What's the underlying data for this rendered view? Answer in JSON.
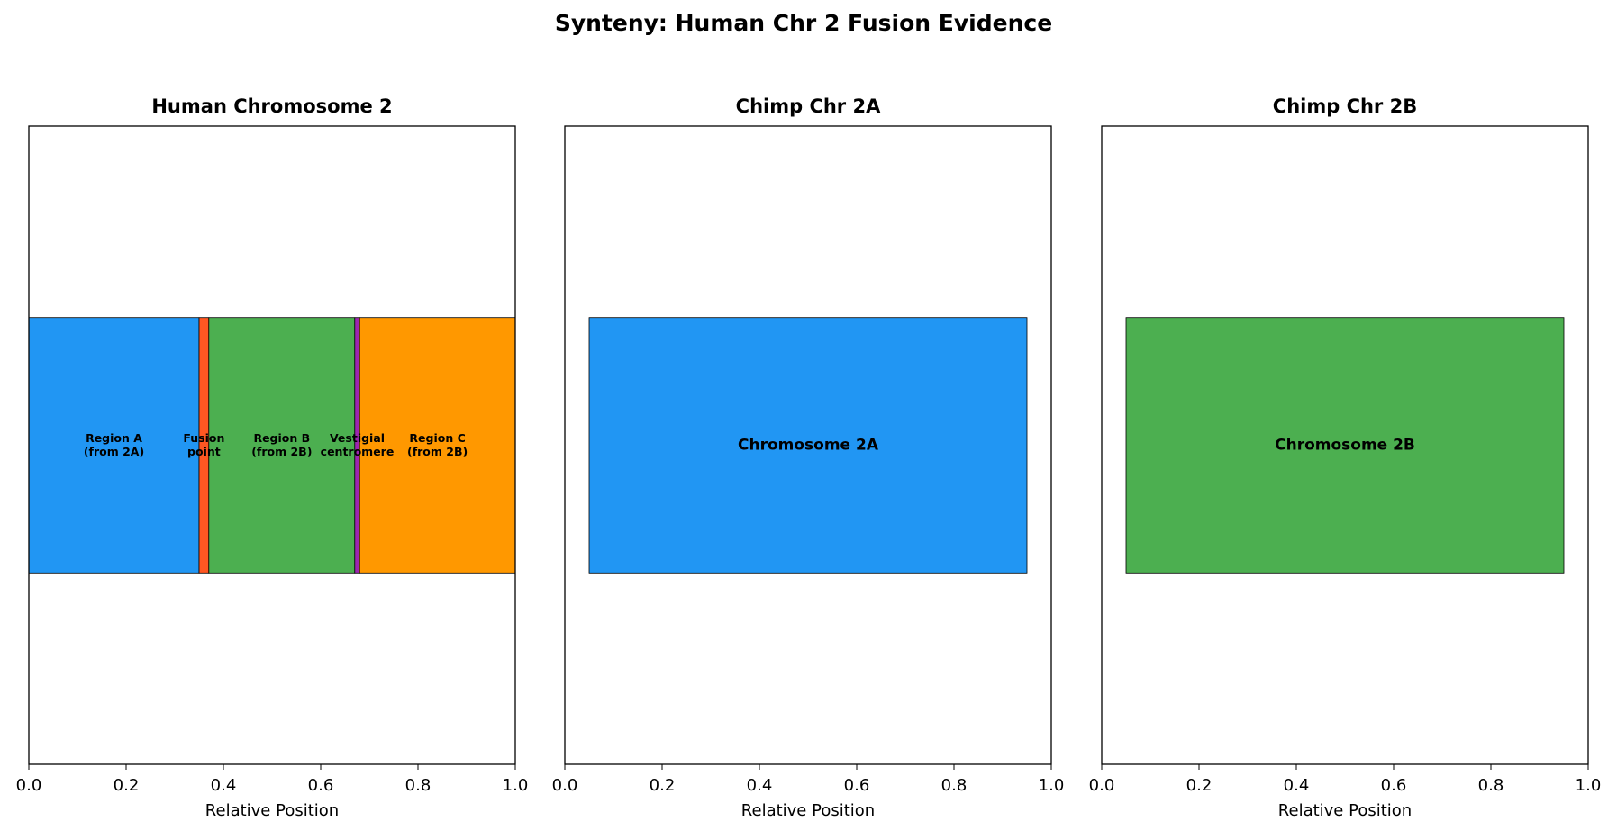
{
  "title": "Synteny: Human Chr 2 Fusion Evidence",
  "chart_data": [
    {
      "type": "broken_barh",
      "title": "Human Chromosome 2",
      "xlabel": "Relative Position",
      "xlim": [
        0.0,
        1.0
      ],
      "xticks": [
        {
          "value": 0,
          "label": "0.0"
        },
        {
          "value": 0.2,
          "label": "0.2"
        },
        {
          "value": 0.4,
          "label": "0.4"
        },
        {
          "value": 0.6,
          "label": "0.6"
        },
        {
          "value": 0.8,
          "label": "0.8"
        },
        {
          "value": 1,
          "label": "1.0"
        }
      ],
      "segments": [
        {
          "label": [
            "Region A",
            "(from 2A)"
          ],
          "start": 0,
          "end": 0.35,
          "color": "#2196f3"
        },
        {
          "label": [
            "Fusion",
            "point"
          ],
          "start": 0.35,
          "end": 0.37,
          "color": "#ff5722"
        },
        {
          "label": [
            "Region B",
            "(from 2B)"
          ],
          "start": 0.37,
          "end": 0.67,
          "color": "#4caf50"
        },
        {
          "label": [
            "Vestigial",
            "centromere"
          ],
          "start": 0.67,
          "end": 0.68,
          "color": "#9c27b0"
        },
        {
          "label": [
            "Region C",
            "(from 2B)"
          ],
          "start": 0.68,
          "end": 1.0,
          "color": "#ff9800"
        }
      ]
    },
    {
      "type": "broken_barh",
      "title": "Chimp Chr 2A",
      "xlabel": "Relative Position",
      "xlim": [
        0.0,
        1.0
      ],
      "xticks": [
        {
          "value": 0,
          "label": "0.0"
        },
        {
          "value": 0.2,
          "label": "0.2"
        },
        {
          "value": 0.4,
          "label": "0.4"
        },
        {
          "value": 0.6,
          "label": "0.6"
        },
        {
          "value": 0.8,
          "label": "0.8"
        },
        {
          "value": 1,
          "label": "1.0"
        }
      ],
      "segments": [
        {
          "label": [
            "Chromosome 2A"
          ],
          "start": 0.05,
          "end": 0.95,
          "color": "#2196f3"
        }
      ]
    },
    {
      "type": "broken_barh",
      "title": "Chimp Chr 2B",
      "xlabel": "Relative Position",
      "xlim": [
        0.0,
        1.0
      ],
      "xticks": [
        {
          "value": 0,
          "label": "0.0"
        },
        {
          "value": 0.2,
          "label": "0.2"
        },
        {
          "value": 0.4,
          "label": "0.4"
        },
        {
          "value": 0.6,
          "label": "0.6"
        },
        {
          "value": 0.8,
          "label": "0.8"
        },
        {
          "value": 1,
          "label": "1.0"
        }
      ],
      "segments": [
        {
          "label": [
            "Chromosome 2B"
          ],
          "start": 0.05,
          "end": 0.95,
          "color": "#4caf50"
        }
      ]
    }
  ]
}
